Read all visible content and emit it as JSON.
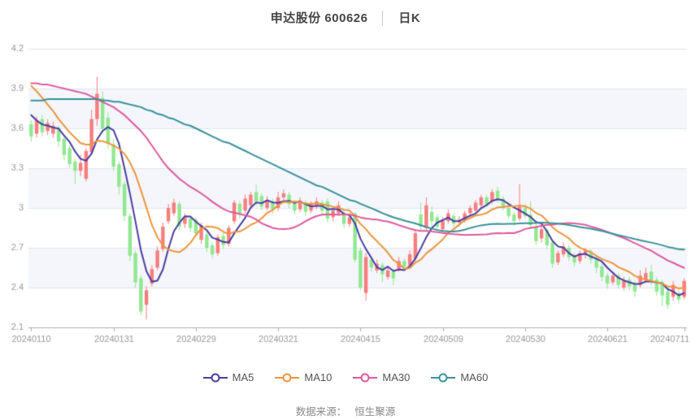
{
  "page": {
    "title_main": "申达股份 600626",
    "title_sep": "│",
    "title_sub": "日K"
  },
  "footer": {
    "source_label": "数据来源：",
    "source_value": "恒生聚源"
  },
  "chart_data": {
    "type": "candlestick",
    "title": "申达股份 600626 日K",
    "ylim": [
      2.1,
      4.2
    ],
    "y_ticks": [
      "4.2",
      "3.9",
      "3.6",
      "3.3",
      "3",
      "2.7",
      "2.4",
      "2.1"
    ],
    "y_tick_values": [
      4.2,
      3.9,
      3.6,
      3.3,
      3.0,
      2.7,
      2.4,
      2.1
    ],
    "grid": "horizontal-lines-with-alternating-bands",
    "legend_position": "bottom",
    "x_tick_indices": [
      0,
      15,
      30,
      45,
      60,
      75,
      90,
      105,
      119
    ],
    "x_tick_labels": [
      "20240110",
      "20240131",
      "20240229",
      "20240321",
      "20240415",
      "20240509",
      "20240530",
      "20240621",
      "20240711"
    ],
    "colors": {
      "up_candle": "#f87d7d",
      "down_candle": "#90e890",
      "band": "#f4f6fb",
      "grid_line": "#e1e5f2",
      "axis_line": "#aaaeb8",
      "axis_text": "#999999"
    },
    "candles_format": [
      "date",
      "open",
      "close",
      "low",
      "high"
    ],
    "candles": [
      [
        "20240110",
        3.63,
        3.54,
        3.5,
        3.66
      ],
      [
        "20240111",
        3.56,
        3.66,
        3.53,
        3.69
      ],
      [
        "20240112",
        3.67,
        3.57,
        3.54,
        3.7
      ],
      [
        "20240115",
        3.58,
        3.64,
        3.55,
        3.67
      ],
      [
        "20240116",
        3.56,
        3.62,
        3.53,
        3.65
      ],
      [
        "20240117",
        3.6,
        3.5,
        3.46,
        3.62
      ],
      [
        "20240118",
        3.52,
        3.4,
        3.36,
        3.54
      ],
      [
        "20240119",
        3.45,
        3.33,
        3.3,
        3.47
      ],
      [
        "20240122",
        3.35,
        3.28,
        3.18,
        3.37
      ],
      [
        "20240123",
        3.28,
        3.34,
        3.24,
        3.4
      ],
      [
        "20240124",
        3.22,
        3.43,
        3.2,
        3.45
      ],
      [
        "20240125",
        3.42,
        3.67,
        3.4,
        3.74
      ],
      [
        "20240126",
        3.67,
        3.86,
        3.62,
        3.99
      ],
      [
        "20240129",
        3.83,
        3.6,
        3.56,
        3.88
      ],
      [
        "20240130",
        3.68,
        3.49,
        3.45,
        3.72
      ],
      [
        "20240131",
        3.48,
        3.31,
        3.28,
        3.52
      ],
      [
        "20240201",
        3.33,
        3.16,
        3.1,
        3.35
      ],
      [
        "20240202",
        3.18,
        2.94,
        2.9,
        3.2
      ],
      [
        "20240205",
        2.94,
        2.64,
        2.6,
        2.96
      ],
      [
        "20240206",
        2.66,
        2.44,
        2.4,
        2.68
      ],
      [
        "20240207",
        2.47,
        2.22,
        2.19,
        2.49
      ],
      [
        "20240208",
        2.27,
        2.38,
        2.16,
        2.41
      ],
      [
        "20240219",
        2.43,
        2.54,
        2.41,
        2.57
      ],
      [
        "20240220",
        2.55,
        2.68,
        2.53,
        2.71
      ],
      [
        "20240221",
        2.69,
        2.86,
        2.67,
        2.89
      ],
      [
        "20240222",
        2.9,
        3.0,
        2.88,
        3.03
      ],
      [
        "20240223",
        2.96,
        3.04,
        2.94,
        3.07
      ],
      [
        "20240226",
        3.03,
        2.86,
        2.83,
        3.05
      ],
      [
        "20240227",
        2.88,
        2.93,
        2.85,
        2.96
      ],
      [
        "20240228",
        2.92,
        2.85,
        2.82,
        2.94
      ],
      [
        "20240229",
        2.91,
        2.81,
        2.78,
        2.93
      ],
      [
        "20240301",
        2.76,
        2.87,
        2.73,
        2.89
      ],
      [
        "20240304",
        2.8,
        2.7,
        2.67,
        2.82
      ],
      [
        "20240305",
        2.72,
        2.65,
        2.62,
        2.74
      ],
      [
        "20240306",
        2.66,
        2.78,
        2.64,
        2.8
      ],
      [
        "20240307",
        2.79,
        2.72,
        2.69,
        2.81
      ],
      [
        "20240308",
        2.73,
        2.85,
        2.71,
        2.87
      ],
      [
        "20240311",
        2.9,
        3.04,
        2.88,
        3.06
      ],
      [
        "20240312",
        3.03,
        2.95,
        2.92,
        3.05
      ],
      [
        "20240313",
        2.98,
        3.07,
        2.96,
        3.1
      ],
      [
        "20240314",
        3.02,
        3.1,
        3.0,
        3.12
      ],
      [
        "20240315",
        3.12,
        3.05,
        3.02,
        3.18
      ],
      [
        "20240318",
        3.09,
        3.01,
        2.98,
        3.11
      ],
      [
        "20240319",
        3.0,
        3.06,
        2.98,
        3.09
      ],
      [
        "20240320",
        3.05,
        2.99,
        2.96,
        3.07
      ],
      [
        "20240321",
        3.0,
        3.08,
        2.98,
        3.12
      ],
      [
        "20240322",
        3.08,
        3.11,
        3.04,
        3.14
      ],
      [
        "20240325",
        3.1,
        3.03,
        3.0,
        3.12
      ],
      [
        "20240326",
        3.04,
        2.98,
        2.95,
        3.06
      ],
      [
        "20240327",
        2.99,
        3.05,
        2.97,
        3.08
      ],
      [
        "20240328",
        3.04,
        2.97,
        2.94,
        3.06
      ],
      [
        "20240329",
        2.98,
        3.03,
        2.96,
        3.05
      ],
      [
        "20240401",
        3.02,
        3.05,
        2.99,
        3.08
      ],
      [
        "20240402",
        3.04,
        2.98,
        2.95,
        3.06
      ],
      [
        "20240403",
        3.05,
        2.92,
        2.89,
        3.07
      ],
      [
        "20240408",
        2.93,
        2.98,
        2.9,
        3.01
      ],
      [
        "20240409",
        2.96,
        3.02,
        2.94,
        3.05
      ],
      [
        "20240410",
        2.96,
        2.88,
        2.85,
        2.98
      ],
      [
        "20240411",
        2.88,
        2.93,
        2.86,
        2.96
      ],
      [
        "20240412",
        2.96,
        2.61,
        2.59,
        2.97
      ],
      [
        "20240415",
        2.68,
        2.4,
        2.38,
        2.7
      ],
      [
        "20240416",
        2.36,
        2.63,
        2.3,
        2.66
      ],
      [
        "20240417",
        2.61,
        2.55,
        2.52,
        2.64
      ],
      [
        "20240418",
        2.53,
        2.58,
        2.51,
        2.61
      ],
      [
        "20240419",
        2.57,
        2.5,
        2.44,
        2.59
      ],
      [
        "20240422",
        2.48,
        2.53,
        2.46,
        2.56
      ],
      [
        "20240423",
        2.52,
        2.47,
        2.42,
        2.54
      ],
      [
        "20240424",
        2.54,
        2.6,
        2.52,
        2.63
      ],
      [
        "20240425",
        2.6,
        2.56,
        2.53,
        2.62
      ],
      [
        "20240426",
        2.57,
        2.65,
        2.55,
        2.68
      ],
      [
        "20240429",
        2.62,
        2.81,
        2.6,
        2.83
      ],
      [
        "20240430",
        2.95,
        2.86,
        2.83,
        3.04
      ],
      [
        "20240506",
        2.85,
        3.02,
        2.83,
        3.08
      ],
      [
        "20240507",
        2.97,
        2.9,
        2.86,
        3.01
      ],
      [
        "20240508",
        2.93,
        2.86,
        2.83,
        2.95
      ],
      [
        "20240509",
        2.84,
        2.9,
        2.81,
        2.93
      ],
      [
        "20240510",
        2.9,
        2.96,
        2.88,
        2.99
      ],
      [
        "20240513",
        2.94,
        2.88,
        2.85,
        2.96
      ],
      [
        "20240514",
        2.89,
        2.91,
        2.86,
        2.94
      ],
      [
        "20240515",
        2.91,
        2.96,
        2.89,
        2.98
      ],
      [
        "20240516",
        2.96,
        3.0,
        2.94,
        3.02
      ],
      [
        "20240517",
        2.98,
        3.04,
        2.96,
        3.06
      ],
      [
        "20240520",
        3.02,
        3.08,
        3.0,
        3.1
      ],
      [
        "20240521",
        3.08,
        3.03,
        3.01,
        3.1
      ],
      [
        "20240522",
        3.05,
        3.12,
        3.03,
        3.14
      ],
      [
        "20240523",
        3.13,
        3.06,
        3.04,
        3.16
      ],
      [
        "20240524",
        3.07,
        3.0,
        2.98,
        3.09
      ],
      [
        "20240527",
        3.0,
        2.94,
        2.92,
        3.02
      ],
      [
        "20240528",
        2.95,
        2.9,
        2.87,
        2.97
      ],
      [
        "20240529",
        2.92,
        3.01,
        2.9,
        3.18
      ],
      [
        "20240530",
        3.0,
        2.94,
        2.92,
        3.03
      ],
      [
        "20240531",
        2.95,
        2.87,
        2.84,
        3.05
      ],
      [
        "20240603",
        2.86,
        2.75,
        2.72,
        2.88
      ],
      [
        "20240604",
        2.77,
        2.84,
        2.74,
        2.87
      ],
      [
        "20240605",
        2.83,
        2.72,
        2.69,
        2.85
      ],
      [
        "20240606",
        2.74,
        2.58,
        2.55,
        2.76
      ],
      [
        "20240607",
        2.59,
        2.66,
        2.57,
        2.68
      ],
      [
        "20240611",
        2.65,
        2.71,
        2.63,
        2.74
      ],
      [
        "20240612",
        2.7,
        2.63,
        2.6,
        2.72
      ],
      [
        "20240613",
        2.64,
        2.59,
        2.56,
        2.66
      ],
      [
        "20240614",
        2.6,
        2.66,
        2.58,
        2.68
      ],
      [
        "20240617",
        2.65,
        2.68,
        2.62,
        2.7
      ],
      [
        "20240618",
        2.67,
        2.61,
        2.58,
        2.69
      ],
      [
        "20240619",
        2.62,
        2.55,
        2.51,
        2.64
      ],
      [
        "20240620",
        2.56,
        2.48,
        2.45,
        2.58
      ],
      [
        "20240621",
        2.49,
        2.43,
        2.39,
        2.51
      ],
      [
        "20240624",
        2.44,
        2.49,
        2.42,
        2.52
      ],
      [
        "20240625",
        2.49,
        2.42,
        2.39,
        2.51
      ],
      [
        "20240626",
        2.4,
        2.45,
        2.38,
        2.48
      ],
      [
        "20240627",
        2.46,
        2.41,
        2.38,
        2.48
      ],
      [
        "20240628",
        2.43,
        2.37,
        2.33,
        2.45
      ],
      [
        "20240701",
        2.42,
        2.49,
        2.4,
        2.53
      ],
      [
        "20240702",
        2.46,
        2.51,
        2.44,
        2.55
      ],
      [
        "20240703",
        2.52,
        2.45,
        2.42,
        2.57
      ],
      [
        "20240704",
        2.46,
        2.37,
        2.34,
        2.48
      ],
      [
        "20240705",
        2.44,
        2.34,
        2.26,
        2.46
      ],
      [
        "20240708",
        2.37,
        2.27,
        2.24,
        2.39
      ],
      [
        "20240709",
        2.33,
        2.42,
        2.3,
        2.45
      ],
      [
        "20240710",
        2.36,
        2.31,
        2.28,
        2.39
      ],
      [
        "20240711",
        2.33,
        2.45,
        2.31,
        2.47
      ]
    ],
    "ma_series": [
      {
        "name": "MA5",
        "period": 5,
        "color": "#4a3da0",
        "pre_window_values": [
          3.7,
          3.66,
          3.63,
          3.62
        ]
      },
      {
        "name": "MA10",
        "period": 10,
        "color": "#ec953d",
        "pre_window_values": [
          3.92,
          3.88,
          3.83,
          3.78,
          3.73,
          3.67,
          3.62,
          3.57,
          3.53
        ]
      },
      {
        "name": "MA30",
        "period": 30,
        "color": "#dd5a9f",
        "pre_window_values": [
          3.94,
          3.94,
          3.93,
          3.93,
          3.92,
          3.91,
          3.9,
          3.89,
          3.88,
          3.87,
          3.86,
          3.84,
          3.82,
          3.8,
          3.78,
          3.76,
          3.73,
          3.7,
          3.66,
          3.62,
          3.58,
          3.53,
          3.47,
          3.41,
          3.35,
          3.3,
          3.26,
          3.22,
          3.19
        ]
      },
      {
        "name": "MA60",
        "period": 60,
        "color": "#38929a",
        "pre_window_values": [
          3.81,
          3.81,
          3.81,
          3.82,
          3.82,
          3.82,
          3.82,
          3.82,
          3.82,
          3.82,
          3.82,
          3.82,
          3.82,
          3.81,
          3.81,
          3.8,
          3.8,
          3.79,
          3.78,
          3.77,
          3.76,
          3.74,
          3.73,
          3.71,
          3.7,
          3.68,
          3.67,
          3.65,
          3.63,
          3.62,
          3.6,
          3.58,
          3.56,
          3.54,
          3.52,
          3.5,
          3.49,
          3.47,
          3.45,
          3.43,
          3.41,
          3.39,
          3.37,
          3.35,
          3.33,
          3.31,
          3.29,
          3.27,
          3.25,
          3.23,
          3.21,
          3.19,
          3.17,
          3.16,
          3.14,
          3.12,
          3.1,
          3.08,
          3.06
        ]
      }
    ]
  }
}
